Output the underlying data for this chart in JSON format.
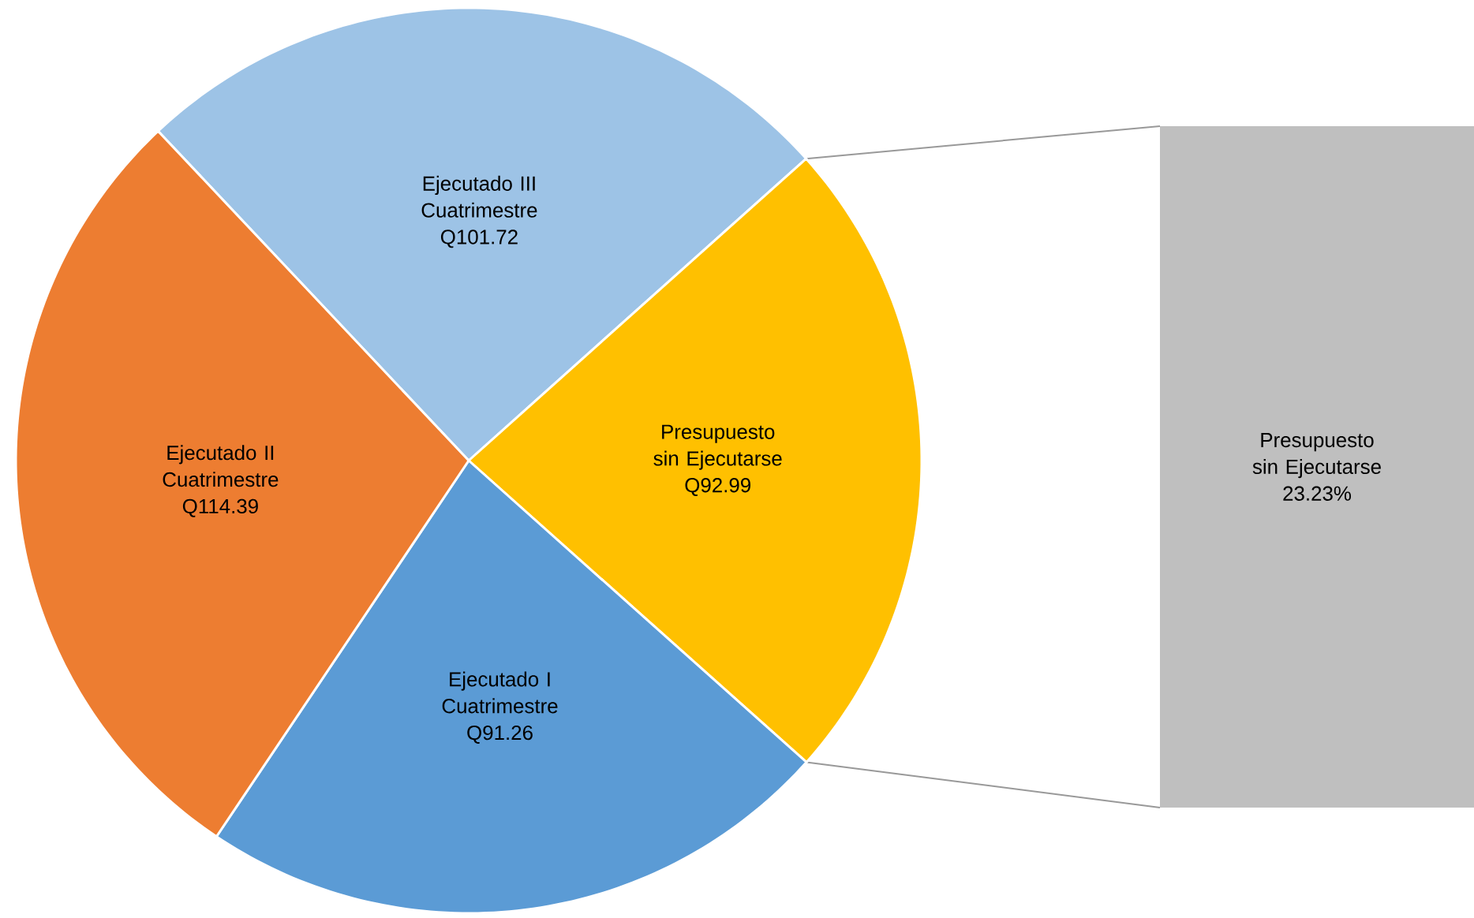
{
  "chart_data": [
    {
      "type": "pie",
      "categories": [
        "Ejecutado III Cuatrimestre",
        "Presupuesto sin Ejecutarse",
        "Ejecutado I Cuatrimestre",
        "Ejecutado II Cuatrimestre"
      ],
      "values": [
        101.72,
        92.99,
        91.26,
        114.39
      ],
      "value_labels": [
        "Q101.72",
        "Q92.99",
        "Q91.26",
        "Q114.39"
      ],
      "colors": [
        "#9dc3e6",
        "#ffc000",
        "#5b9bd5",
        "#ed7d31"
      ]
    },
    {
      "type": "other",
      "categories": [
        "Presupuesto sin Ejecutarse"
      ],
      "values": [
        23.23
      ],
      "value_labels": [
        "23.23%"
      ],
      "color": "#bfbfbf"
    }
  ]
}
